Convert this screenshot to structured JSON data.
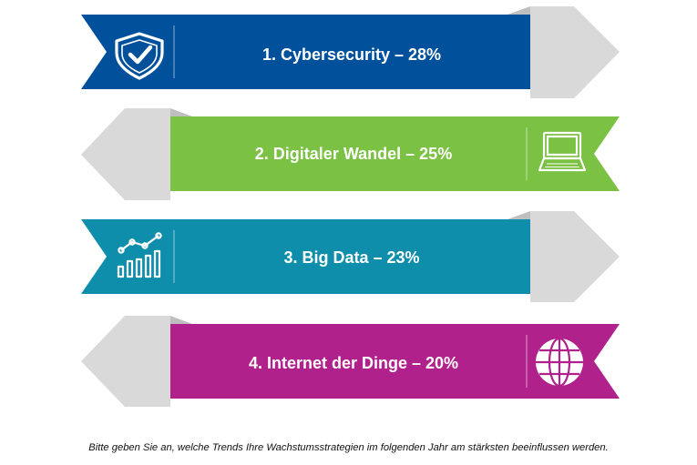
{
  "chart_data": {
    "type": "bar",
    "title": "",
    "categories": [
      "Cybersecurity",
      "Digitaler Wandel",
      "Big Data",
      "Internet der Dinge"
    ],
    "values": [
      28,
      25,
      23,
      20
    ],
    "unit": "%",
    "items": [
      {
        "label": "1. Cybersecurity – 28%",
        "value": 28,
        "color": "#00509b",
        "icon": "shield-check-icon",
        "direction": "right"
      },
      {
        "label": "2. Digitaler Wandel – 25%",
        "value": 25,
        "color": "#7bc143",
        "icon": "laptop-icon",
        "direction": "left"
      },
      {
        "label": "3. Big Data – 23%",
        "value": 23,
        "color": "#0f8eab",
        "icon": "growth-chart-icon",
        "direction": "right"
      },
      {
        "label": "4. Internet der Dinge – 20%",
        "value": 20,
        "color": "#b0218b",
        "icon": "globe-icon",
        "direction": "left"
      }
    ]
  },
  "footnote": "Bitte geben Sie an, welche Trends Ihre Wachstumsstrategien im folgenden Jahr am stärksten beeinflussen werden.",
  "colors": {
    "arrow_grey": "#d9d9d9",
    "arrow_fold": "#bfbfbf",
    "text": "#ffffff"
  }
}
